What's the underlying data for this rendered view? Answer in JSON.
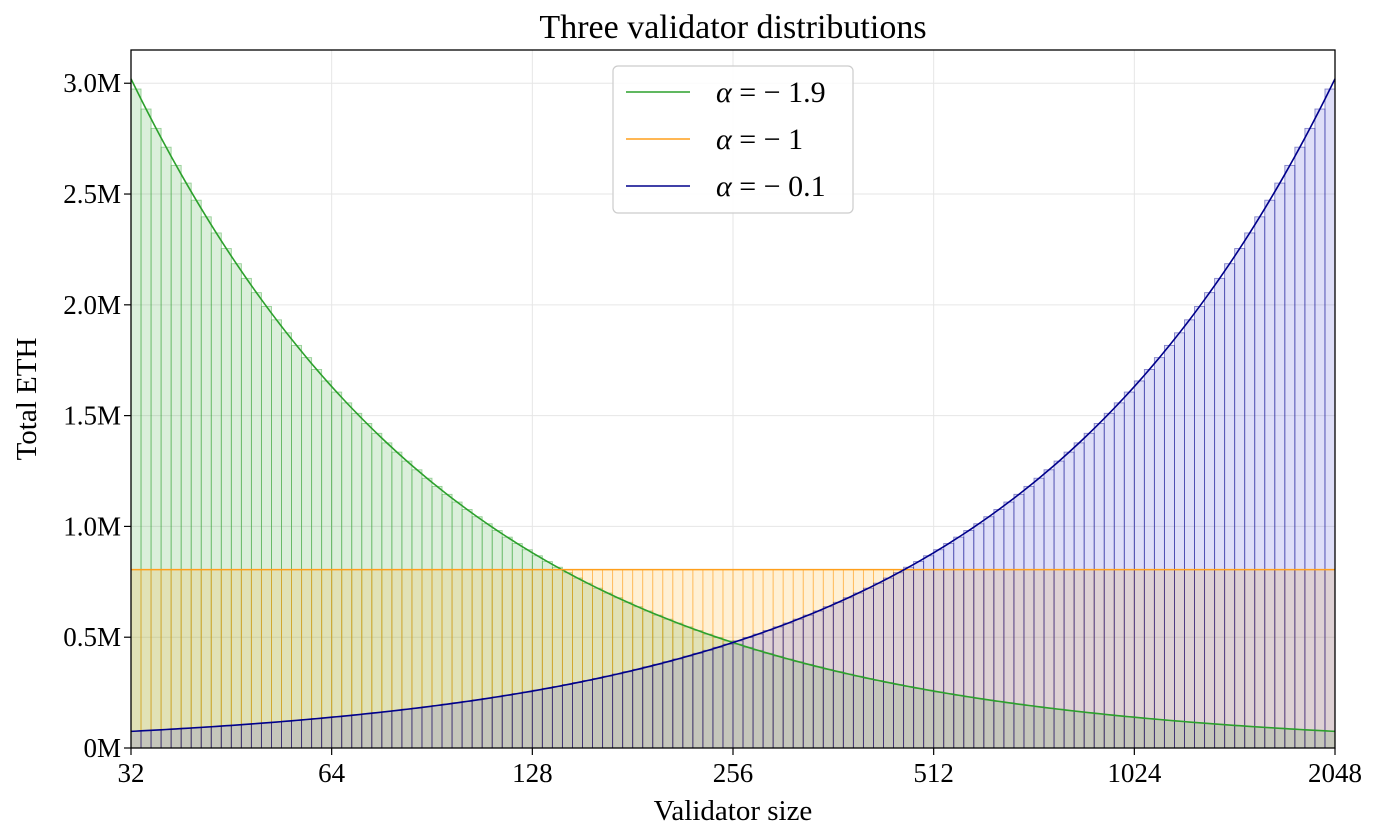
{
  "chart_data": {
    "type": "bar",
    "title": "Three validator distributions",
    "xlabel": "Validator size",
    "ylabel": "Total ETH",
    "x_scale": "log2",
    "xlim": [
      32,
      2048
    ],
    "ylim": [
      0,
      3150000
    ],
    "x_ticks": [
      32,
      64,
      128,
      256,
      512,
      1024,
      2048
    ],
    "x_tick_labels": [
      "32",
      "64",
      "128",
      "256",
      "512",
      "1024",
      "2048"
    ],
    "y_ticks": [
      0,
      500000,
      1000000,
      1500000,
      2000000,
      2500000,
      3000000
    ],
    "y_tick_labels": [
      "0M",
      "0.5M",
      "1.0M",
      "1.5M",
      "2.0M",
      "2.5M",
      "3.0M"
    ],
    "grid": true,
    "legend_position": "top-center",
    "bins_per_octave": 20,
    "series": [
      {
        "name": "α = −1.9",
        "legend_symbol": "α",
        "legend_value": " = − 1.9",
        "alpha": -1.9,
        "color": "#2ca02c",
        "fill": "#2ca02c",
        "start_value": 3020000,
        "end_value": 75000
      },
      {
        "name": "α = −1",
        "legend_symbol": "α",
        "legend_value": " = − 1",
        "alpha": -1,
        "color": "#ff9f1c",
        "fill": "#ffa500",
        "start_value": 805000,
        "end_value": 805000
      },
      {
        "name": "α = −0.1",
        "legend_symbol": "α",
        "legend_value": " = − 0.1",
        "alpha": -0.1,
        "color": "#00008b",
        "fill": "#3b3bd6",
        "start_value": 75000,
        "end_value": 3020000
      }
    ]
  }
}
